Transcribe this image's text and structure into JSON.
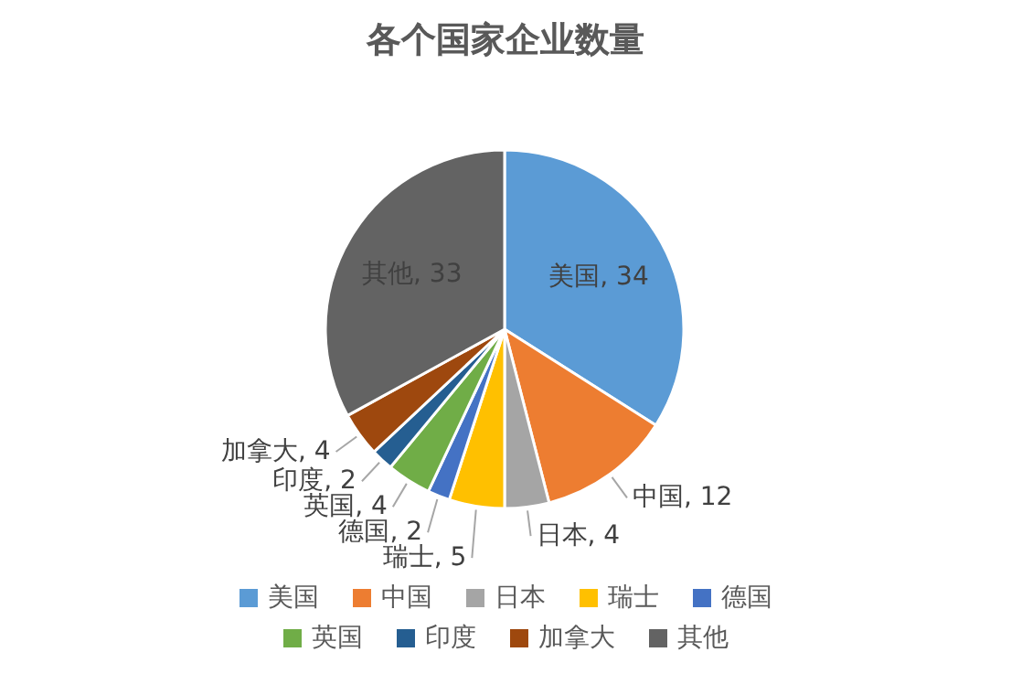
{
  "chart_data": {
    "type": "pie",
    "title": "各个国家企业数量",
    "categories": [
      "美国",
      "中国",
      "日本",
      "瑞士",
      "德国",
      "英国",
      "印度",
      "加拿大",
      "其他"
    ],
    "values": [
      34,
      12,
      4,
      5,
      2,
      4,
      2,
      4,
      33
    ],
    "colors": [
      "#5b9bd5",
      "#ed7d31",
      "#a5a5a5",
      "#ffc000",
      "#4472c4",
      "#70ad47",
      "#255e91",
      "#9e480e",
      "#636363"
    ],
    "value_labels": [
      "美国, 34",
      "中国, 12",
      "日本, 4",
      "瑞士, 5",
      "德国, 2",
      "英国, 4",
      "印度, 2",
      "加拿大, 4",
      "其他, 33"
    ],
    "legend": "bottom"
  }
}
